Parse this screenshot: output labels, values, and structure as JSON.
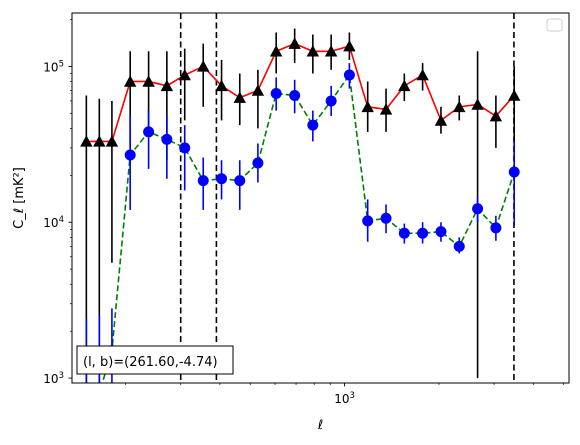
{
  "chart_data": {
    "type": "line",
    "xlabel": "ℓ",
    "ylabel": "C_ℓ [mK²]",
    "xscale": "log",
    "yscale": "log",
    "xlim": [
      135,
      5200
    ],
    "ylim": [
      930,
      220000
    ],
    "x_tick_labels": [
      {
        "value": 1000,
        "base": "10",
        "exp": "3"
      }
    ],
    "y_tick_labels": [
      {
        "value": 1000,
        "base": "10",
        "exp": "3"
      },
      {
        "value": 10000,
        "base": "10",
        "exp": "4"
      },
      {
        "value": 100000,
        "base": "10",
        "exp": "5"
      }
    ],
    "vlines": [
      300,
      390,
      3470
    ],
    "annotation": "(l, b)=(261.60,-4.74)",
    "series": [
      {
        "color": "#ff0000",
        "marker": "triangle",
        "marker_color": "#000000",
        "line_style": "solid",
        "points": [
          {
            "x": 150,
            "y": 33000,
            "lo": 900,
            "hi": 65000
          },
          {
            "x": 165,
            "y": 33000,
            "lo": 900,
            "hi": 62000
          },
          {
            "x": 181,
            "y": 33000,
            "lo": 5500,
            "hi": 60000
          },
          {
            "x": 207,
            "y": 80000,
            "lo": 30000,
            "hi": 125000
          },
          {
            "x": 237,
            "y": 80000,
            "lo": 40000,
            "hi": 125000
          },
          {
            "x": 271,
            "y": 75000,
            "lo": 25000,
            "hi": 125000
          },
          {
            "x": 309,
            "y": 88000,
            "lo": 45000,
            "hi": 130000
          },
          {
            "x": 354,
            "y": 100000,
            "lo": 55000,
            "hi": 140000
          },
          {
            "x": 405,
            "y": 75000,
            "lo": 45000,
            "hi": 110000
          },
          {
            "x": 463,
            "y": 63000,
            "lo": 42000,
            "hi": 90000
          },
          {
            "x": 529,
            "y": 70000,
            "lo": 40000,
            "hi": 95000
          },
          {
            "x": 605,
            "y": 125000,
            "lo": 90000,
            "hi": 165000
          },
          {
            "x": 693,
            "y": 140000,
            "lo": 105000,
            "hi": 175000
          },
          {
            "x": 792,
            "y": 125000,
            "lo": 90000,
            "hi": 160000
          },
          {
            "x": 906,
            "y": 125000,
            "lo": 95000,
            "hi": 160000
          },
          {
            "x": 1036,
            "y": 135000,
            "lo": 110000,
            "hi": 165000
          },
          {
            "x": 1185,
            "y": 55000,
            "lo": 38000,
            "hi": 80000
          },
          {
            "x": 1356,
            "y": 53000,
            "lo": 38000,
            "hi": 72000
          },
          {
            "x": 1551,
            "y": 75000,
            "lo": 60000,
            "hi": 90000
          },
          {
            "x": 1774,
            "y": 88000,
            "lo": 70000,
            "hi": 105000
          },
          {
            "x": 2030,
            "y": 45000,
            "lo": 37000,
            "hi": 55000
          },
          {
            "x": 2322,
            "y": 55000,
            "lo": 45000,
            "hi": 65000
          },
          {
            "x": 2657,
            "y": 57000,
            "lo": 1000,
            "hi": 125000
          },
          {
            "x": 3039,
            "y": 48000,
            "lo": 30000,
            "hi": 65000
          },
          {
            "x": 3477,
            "y": 65000,
            "lo": 25000,
            "hi": 100000
          }
        ]
      },
      {
        "color": "#008000",
        "marker": "circle",
        "marker_color": "#0000ff",
        "line_style": "dashed",
        "points": [
          {
            "x": 150,
            "y": 800,
            "lo": 500,
            "hi": 2400
          },
          {
            "x": 165,
            "y": 800,
            "lo": 500,
            "hi": 2500
          },
          {
            "x": 181,
            "y": 1500,
            "lo": 500,
            "hi": 2800
          },
          {
            "x": 207,
            "y": 27000,
            "lo": 12000,
            "hi": 48000
          },
          {
            "x": 237,
            "y": 38000,
            "lo": 22000,
            "hi": 52000
          },
          {
            "x": 271,
            "y": 34000,
            "lo": 19000,
            "hi": 48000
          },
          {
            "x": 309,
            "y": 30000,
            "lo": 16000,
            "hi": 42000
          },
          {
            "x": 354,
            "y": 18500,
            "lo": 12000,
            "hi": 26000
          },
          {
            "x": 405,
            "y": 19000,
            "lo": 14000,
            "hi": 25000
          },
          {
            "x": 463,
            "y": 18500,
            "lo": 12000,
            "hi": 25000
          },
          {
            "x": 529,
            "y": 24000,
            "lo": 18000,
            "hi": 32000
          },
          {
            "x": 605,
            "y": 67000,
            "lo": 52000,
            "hi": 85000
          },
          {
            "x": 693,
            "y": 65000,
            "lo": 50000,
            "hi": 82000
          },
          {
            "x": 792,
            "y": 42000,
            "lo": 33000,
            "hi": 52000
          },
          {
            "x": 906,
            "y": 60000,
            "lo": 48000,
            "hi": 75000
          },
          {
            "x": 1036,
            "y": 88000,
            "lo": 72000,
            "hi": 105000
          },
          {
            "x": 1185,
            "y": 10200,
            "lo": 7500,
            "hi": 14000
          },
          {
            "x": 1356,
            "y": 10600,
            "lo": 8500,
            "hi": 13000
          },
          {
            "x": 1551,
            "y": 8500,
            "lo": 7300,
            "hi": 9800
          },
          {
            "x": 1774,
            "y": 8500,
            "lo": 7300,
            "hi": 10000
          },
          {
            "x": 2030,
            "y": 8700,
            "lo": 7500,
            "hi": 10000
          },
          {
            "x": 2322,
            "y": 7000,
            "lo": 6300,
            "hi": 8000
          },
          {
            "x": 2657,
            "y": 12200,
            "lo": 10000,
            "hi": 14500
          },
          {
            "x": 3039,
            "y": 9200,
            "lo": 7600,
            "hi": 11000
          },
          {
            "x": 3477,
            "y": 21000,
            "lo": 9500,
            "hi": 33000
          }
        ]
      }
    ]
  }
}
